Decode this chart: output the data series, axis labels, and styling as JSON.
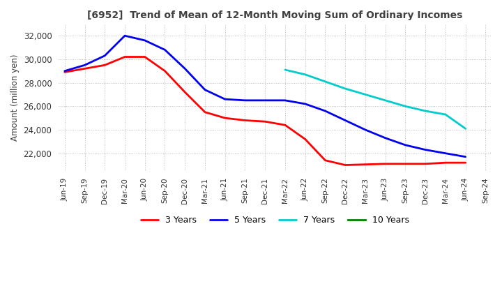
{
  "title": "[6952]  Trend of Mean of 12-Month Moving Sum of Ordinary Incomes",
  "ylabel": "Amount (million yen)",
  "ylim": [
    20500,
    33000
  ],
  "yticks": [
    22000,
    24000,
    26000,
    28000,
    30000,
    32000
  ],
  "background_color": "#ffffff",
  "grid_color": "#aaaaaa",
  "title_color": "#404040",
  "x_labels": [
    "Jun-19",
    "Sep-19",
    "Dec-19",
    "Mar-20",
    "Jun-20",
    "Sep-20",
    "Dec-20",
    "Mar-21",
    "Jun-21",
    "Sep-21",
    "Dec-21",
    "Mar-22",
    "Jun-22",
    "Sep-22",
    "Dec-22",
    "Mar-23",
    "Jun-23",
    "Sep-23",
    "Dec-23",
    "Mar-24",
    "Jun-24",
    "Sep-24"
  ],
  "series": {
    "3 Years": {
      "color": "#ff0000",
      "data": [
        28900,
        29200,
        29500,
        30200,
        30200,
        29000,
        27200,
        25500,
        25000,
        24800,
        24700,
        24400,
        23200,
        21400,
        21000,
        21050,
        21100,
        21100,
        21100,
        21200,
        21200,
        null
      ]
    },
    "5 Years": {
      "color": "#0000ee",
      "data": [
        29000,
        29500,
        30300,
        32000,
        31600,
        30800,
        29200,
        27400,
        26600,
        26500,
        26500,
        26500,
        26200,
        25600,
        24800,
        24000,
        23300,
        22700,
        22300,
        22000,
        21700,
        null
      ]
    },
    "7 Years": {
      "color": "#00cccc",
      "data": [
        null,
        null,
        null,
        null,
        null,
        null,
        null,
        null,
        null,
        null,
        null,
        29100,
        28700,
        28100,
        27500,
        27000,
        26500,
        26000,
        25600,
        25300,
        24100,
        null
      ]
    },
    "10 Years": {
      "color": "#008000",
      "data": [
        null,
        null,
        null,
        null,
        null,
        null,
        null,
        null,
        null,
        null,
        null,
        null,
        null,
        null,
        null,
        null,
        null,
        null,
        null,
        null,
        null,
        null
      ]
    }
  }
}
